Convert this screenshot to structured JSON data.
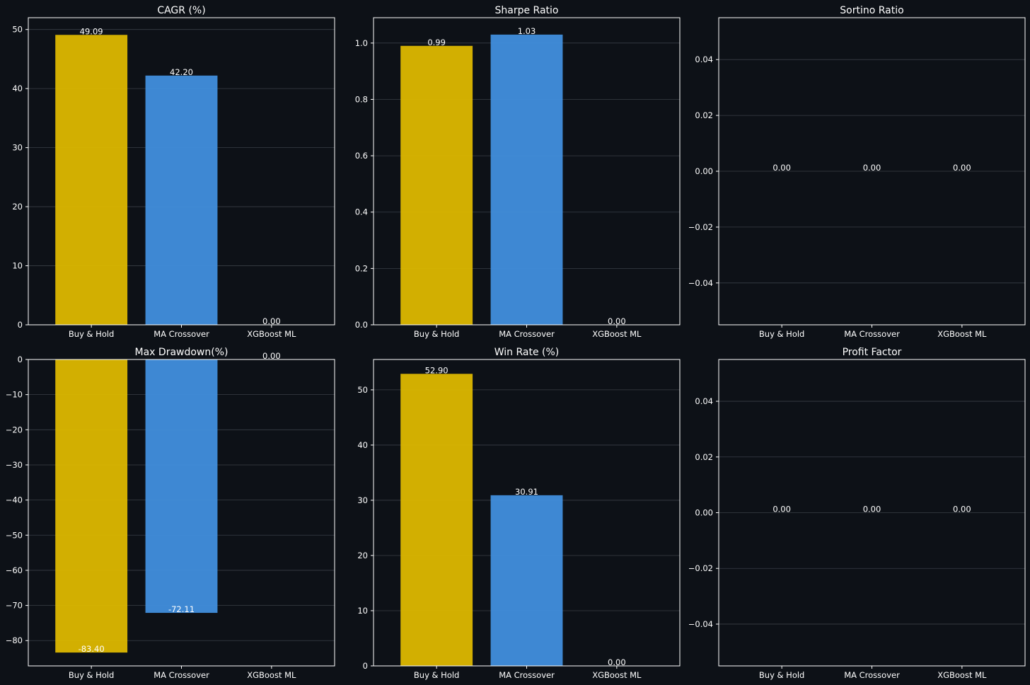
{
  "colors": {
    "background": "#0d1117",
    "series": [
      "#ddb800",
      "#418fdd",
      "#418fdd"
    ]
  },
  "chart_data": [
    {
      "type": "bar",
      "title": "CAGR (%)",
      "categories": [
        "Buy & Hold",
        "MA Crossover",
        "XGBoost ML"
      ],
      "values": [
        49.09,
        42.2,
        0.0
      ],
      "value_labels": [
        "49.09",
        "42.20",
        "0.00"
      ],
      "ylim": [
        0,
        52
      ],
      "yticks": [
        0,
        10,
        20,
        30,
        40,
        50
      ],
      "ytick_labels": [
        "0",
        "10",
        "20",
        "30",
        "40",
        "50"
      ],
      "grid": true,
      "xlabel": "",
      "ylabel": ""
    },
    {
      "type": "bar",
      "title": "Sharpe Ratio",
      "categories": [
        "Buy & Hold",
        "MA Crossover",
        "XGBoost ML"
      ],
      "values": [
        0.99,
        1.03,
        0.0
      ],
      "value_labels": [
        "0.99",
        "1.03",
        "0.00"
      ],
      "ylim": [
        0,
        1.09
      ],
      "yticks": [
        0.0,
        0.2,
        0.4,
        0.6,
        0.8,
        1.0
      ],
      "ytick_labels": [
        "0.0",
        "0.2",
        "0.4",
        "0.6",
        "0.8",
        "1.0"
      ],
      "grid": true,
      "xlabel": "",
      "ylabel": ""
    },
    {
      "type": "bar",
      "title": "Sortino Ratio",
      "categories": [
        "Buy & Hold",
        "MA Crossover",
        "XGBoost ML"
      ],
      "values": [
        0.0,
        0.0,
        0.0
      ],
      "value_labels": [
        "0.00",
        "0.00",
        "0.00"
      ],
      "ylim": [
        -0.055,
        0.055
      ],
      "yticks": [
        -0.04,
        -0.02,
        0.0,
        0.02,
        0.04
      ],
      "ytick_labels": [
        "−0.04",
        "−0.02",
        "0.00",
        "0.02",
        "0.04"
      ],
      "grid": true,
      "xlabel": "",
      "ylabel": ""
    },
    {
      "type": "bar",
      "title": "Max Drawdown(%)",
      "categories": [
        "Buy & Hold",
        "MA Crossover",
        "XGBoost ML"
      ],
      "values": [
        -83.4,
        -72.11,
        0.0
      ],
      "value_labels": [
        "-83.40",
        "-72.11",
        "0.00"
      ],
      "ylim": [
        -87.2,
        0
      ],
      "yticks": [
        0,
        -10,
        -20,
        -30,
        -40,
        -50,
        -60,
        -70,
        -80
      ],
      "ytick_labels": [
        "0",
        "−10",
        "−20",
        "−30",
        "−40",
        "−50",
        "−60",
        "−70",
        "−80"
      ],
      "grid": true,
      "xlabel": "",
      "ylabel": ""
    },
    {
      "type": "bar",
      "title": "Win Rate (%)",
      "categories": [
        "Buy & Hold",
        "MA Crossover",
        "XGBoost ML"
      ],
      "values": [
        52.9,
        30.91,
        0.0
      ],
      "value_labels": [
        "52.90",
        "30.91",
        "0.00"
      ],
      "ylim": [
        0,
        55.5
      ],
      "yticks": [
        0,
        10,
        20,
        30,
        40,
        50
      ],
      "ytick_labels": [
        "0",
        "10",
        "20",
        "30",
        "40",
        "50"
      ],
      "grid": true,
      "xlabel": "",
      "ylabel": ""
    },
    {
      "type": "bar",
      "title": "Profit Factor",
      "categories": [
        "Buy & Hold",
        "MA Crossover",
        "XGBoost ML"
      ],
      "values": [
        0.0,
        0.0,
        0.0
      ],
      "value_labels": [
        "0.00",
        "0.00",
        "0.00"
      ],
      "ylim": [
        -0.055,
        0.055
      ],
      "yticks": [
        -0.04,
        -0.02,
        0.0,
        0.02,
        0.04
      ],
      "ytick_labels": [
        "−0.04",
        "−0.02",
        "0.00",
        "0.02",
        "0.04"
      ],
      "grid": true,
      "xlabel": "",
      "ylabel": ""
    }
  ]
}
